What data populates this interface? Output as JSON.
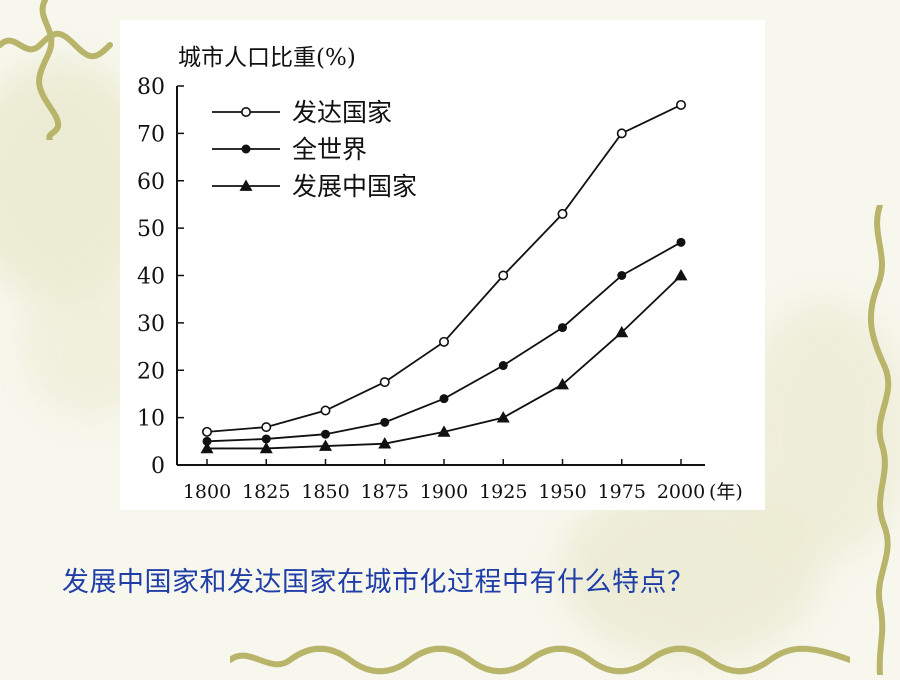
{
  "question": "发展中国家和发达国家在城市化过程中有什么特点？",
  "colors": {
    "question_text": "#1f3ea8",
    "chart_ink": "#111111",
    "vine": "#b8b46a"
  },
  "chart_data": {
    "type": "line",
    "title": "城市人口比重(%)",
    "xlabel": "(年)",
    "ylabel": "",
    "x": [
      1800,
      1825,
      1850,
      1875,
      1900,
      1925,
      1950,
      1975,
      2000
    ],
    "ylim": [
      0,
      80
    ],
    "yticks": [
      0,
      10,
      20,
      30,
      40,
      50,
      60,
      70,
      80
    ],
    "legend_position": "top-left",
    "grid": false,
    "series": [
      {
        "name": "发达国家",
        "marker": "open-circle",
        "values": [
          7,
          8,
          11.5,
          17.5,
          26,
          40,
          53,
          70,
          76
        ]
      },
      {
        "name": "全世界",
        "marker": "filled-circle",
        "values": [
          5,
          5.5,
          6.5,
          9,
          14,
          21,
          29,
          40,
          47
        ]
      },
      {
        "name": "发展中国家",
        "marker": "filled-triangle",
        "values": [
          3.5,
          3.5,
          4,
          4.5,
          7,
          10,
          17,
          28,
          40
        ]
      }
    ]
  }
}
